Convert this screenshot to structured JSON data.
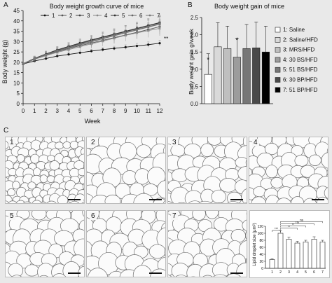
{
  "panels": {
    "a": "A",
    "b": "B",
    "c": "C"
  },
  "panel_a": {
    "chart_data": {
      "type": "line",
      "title": "Body weight growth curve of mice",
      "xlabel": "Week",
      "ylabel": "Body weight (g)",
      "x": [
        0,
        1,
        2,
        3,
        4,
        5,
        6,
        7,
        8,
        9,
        10,
        11,
        12
      ],
      "xlim": [
        0,
        12
      ],
      "ylim": [
        0,
        45
      ],
      "yticks": [
        0,
        5,
        10,
        15,
        20,
        25,
        30,
        35,
        40,
        45
      ],
      "legend_position": "top",
      "series": [
        {
          "name": "1",
          "values": [
            19.2,
            20.6,
            21.8,
            23.0,
            23.8,
            24.6,
            25.4,
            26.1,
            26.7,
            27.3,
            27.9,
            28.5,
            29.2
          ]
        },
        {
          "name": "2",
          "values": [
            19.3,
            21.6,
            23.5,
            25.2,
            26.6,
            28.0,
            29.3,
            30.6,
            31.9,
            33.2,
            34.5,
            35.8,
            37.2
          ]
        },
        {
          "name": "3",
          "values": [
            19.2,
            21.8,
            23.8,
            25.8,
            27.4,
            29.0,
            30.5,
            32.0,
            33.4,
            34.8,
            36.2,
            37.6,
            39.0
          ]
        },
        {
          "name": "4",
          "values": [
            19.2,
            21.4,
            23.2,
            24.8,
            26.1,
            27.5,
            28.9,
            30.2,
            31.6,
            33.0,
            34.2,
            35.3,
            36.4
          ]
        },
        {
          "name": "5",
          "values": [
            19.3,
            21.9,
            24.0,
            26.0,
            27.7,
            29.3,
            30.8,
            32.2,
            33.6,
            35.0,
            36.4,
            37.8,
            39.2
          ]
        },
        {
          "name": "6",
          "values": [
            19.2,
            21.6,
            23.6,
            25.4,
            26.9,
            28.4,
            29.9,
            31.4,
            32.8,
            34.2,
            35.6,
            37.0,
            38.4
          ]
        },
        {
          "name": "7",
          "values": [
            19.3,
            21.7,
            23.7,
            25.6,
            27.1,
            28.6,
            30.1,
            31.6,
            33.0,
            34.4,
            35.8,
            37.2,
            38.6
          ]
        }
      ],
      "error": [
        0,
        1.1,
        1.4,
        1.6,
        1.8,
        2.0,
        2.2,
        2.4,
        2.6,
        2.8,
        3.0,
        3.3,
        3.6
      ],
      "significance_marker": "**"
    }
  },
  "panel_b": {
    "chart_data": {
      "type": "bar",
      "title": "Body weight gain of mice",
      "ylabel": "Body weight gain g/week",
      "categories": [
        "1: Saline",
        "2: Saline/HFD",
        "3: MRS/HFD",
        "4: 30 BS/HFD",
        "5: 51 BS/HFD",
        "6: 30 BP/HFD",
        "7: 51 BP/HFD"
      ],
      "values": [
        0.85,
        1.65,
        1.6,
        1.35,
        1.6,
        1.62,
        1.5
      ],
      "errors": [
        0.6,
        0.7,
        0.65,
        0.55,
        0.7,
        0.75,
        0.75
      ],
      "ylim": [
        0.0,
        2.5
      ],
      "yticks": [
        "0.0",
        "0.5",
        "1.0",
        "1.5",
        "2.0",
        "2.5"
      ],
      "colors": [
        "#ffffff",
        "#d9d9d9",
        "#bfbfbf",
        "#9c9c9c",
        "#777777",
        "#4a4a4a",
        "#000000"
      ],
      "significance": {
        "1": "*",
        "4": "*"
      },
      "legend_position": "right"
    }
  },
  "panel_c": {
    "tiles": [
      "1",
      "2",
      "3",
      "4",
      "5",
      "6",
      "7"
    ]
  },
  "panel_d": {
    "chart_data": {
      "type": "bar",
      "ylabel": "Lipid droplet size (μm²)",
      "categories": [
        "1",
        "2",
        "3",
        "4",
        "5",
        "6",
        "7"
      ],
      "values": [
        25,
        100,
        83,
        72,
        75,
        83,
        75
      ],
      "errors": [
        2,
        8,
        6,
        5,
        5,
        7,
        5
      ],
      "ylim": [
        0,
        120
      ],
      "yticks": [
        "0",
        "20",
        "40",
        "60",
        "80",
        "100",
        "120"
      ],
      "brackets": [
        {
          "from": "1",
          "to": "2",
          "label": "***"
        },
        {
          "from": "2",
          "to": "4",
          "label": "**"
        },
        {
          "from": "2",
          "to": "5",
          "label": "**"
        },
        {
          "from": "2",
          "to": "6",
          "label": "ns"
        },
        {
          "from": "2",
          "to": "7",
          "label": "ns"
        }
      ]
    }
  }
}
